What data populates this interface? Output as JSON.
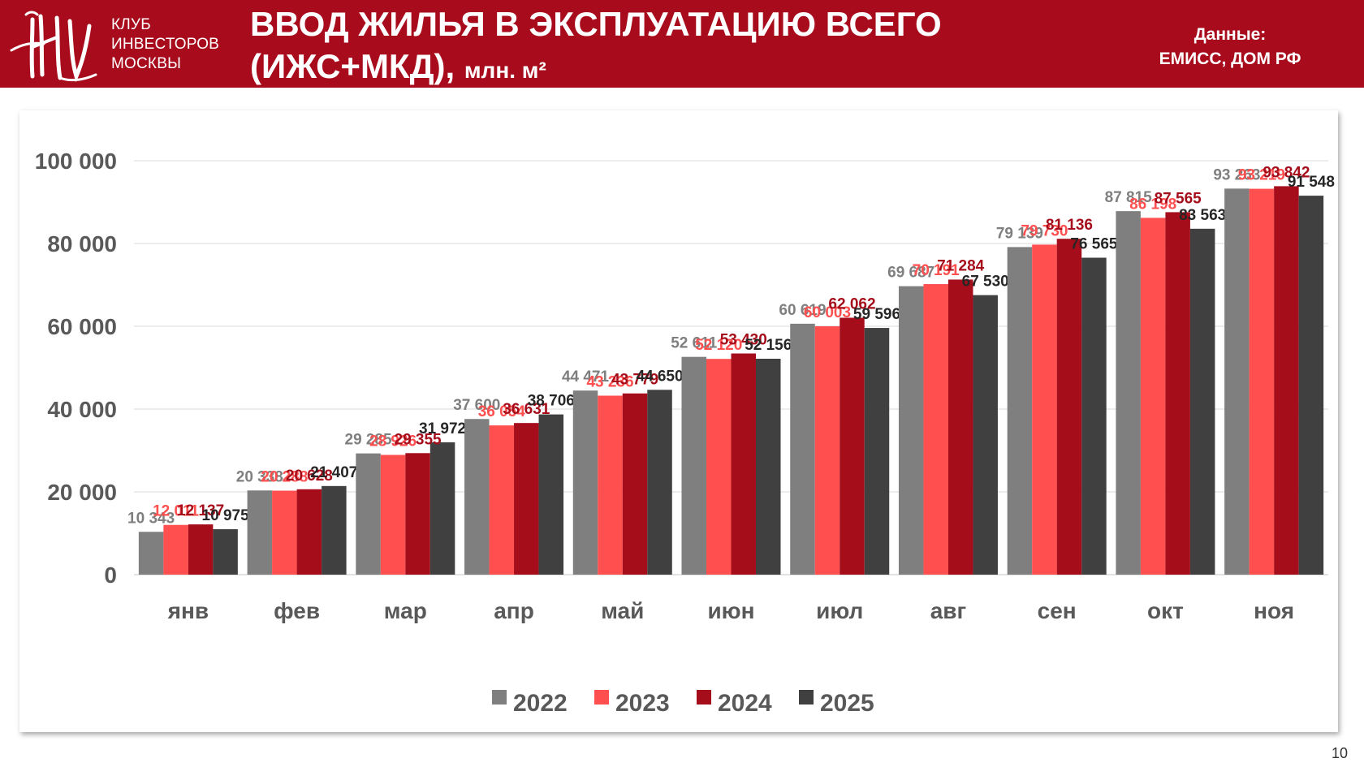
{
  "header": {
    "logo_lines": [
      "КЛУБ",
      "ИНВЕСТОРОВ",
      "МОСКВЫ"
    ],
    "title_line1": "ВВОД ЖИЛЬЯ В ЭКСПЛУАТАЦИЮ ВСЕГО",
    "title_line2": "(ИЖС+МКД),",
    "title_unit": "млн. м²",
    "source_label": "Данные:",
    "source_value": "ЕМИСС, ДОМ РФ"
  },
  "page_number": "10",
  "colors": {
    "header_bg": "#a80c1c",
    "s2022": "#7f7f7f",
    "s2023": "#ff4f4f",
    "s2024": "#a50d1b",
    "s2025": "#404040",
    "label2022": "#7f7f7f",
    "label2023": "#ff4f4f",
    "label2024": "#a50d1b",
    "label2025": "#262626",
    "axis_text": "#595959",
    "grid": "#d9d9d9"
  },
  "chart_data": {
    "type": "bar",
    "title": "ВВОД ЖИЛЬЯ В ЭКСПЛУАТАЦИЮ ВСЕГО (ИЖС+МКД), млн. м²",
    "xlabel": "",
    "ylabel": "",
    "ylim": [
      0,
      100000
    ],
    "y_ticks": [
      0,
      20000,
      40000,
      60000,
      80000,
      100000
    ],
    "y_tick_labels": [
      "0",
      "20 000",
      "40 000",
      "60 000",
      "80 000",
      "100 000"
    ],
    "grid": true,
    "legend_position": "bottom",
    "categories": [
      "янв",
      "фев",
      "мар",
      "апр",
      "май",
      "июн",
      "июл",
      "авг",
      "сен",
      "окт",
      "ноя"
    ],
    "series": [
      {
        "name": "2022",
        "values": [
          10343,
          20338,
          29285,
          37600,
          44471,
          52611,
          60619,
          69687,
          79139,
          87815,
          93263
        ],
        "labels": [
          "10 343",
          "20 338",
          "29 285",
          "37 600",
          "44 471",
          "52 611",
          "60 619",
          "69 687",
          "79 139",
          "87 815",
          "93 263"
        ]
      },
      {
        "name": "2023",
        "values": [
          12011,
          20288,
          28926,
          36054,
          43236,
          52120,
          60003,
          70191,
          79730,
          86198,
          93219
        ],
        "labels": [
          "12 011",
          "20 288",
          "28 926",
          "36 054",
          "43 236",
          "52 120",
          "60 003",
          "70 191",
          "79 730",
          "86 198",
          "93 219"
        ]
      },
      {
        "name": "2024",
        "values": [
          12137,
          20628,
          29355,
          36631,
          43779,
          53430,
          62062,
          71284,
          81136,
          87565,
          93842
        ],
        "labels": [
          "12 137",
          "20 628",
          "29 355",
          "36 631",
          "43 779",
          "53 430",
          "62 062",
          "71 284",
          "81 136",
          "87 565",
          "93 842"
        ]
      },
      {
        "name": "2025",
        "values": [
          10975,
          21407,
          31972,
          38706,
          44650,
          52156,
          59596,
          67530,
          76565,
          83563,
          91548
        ],
        "labels": [
          "10 975",
          "21 407",
          "31 972",
          "38 706",
          "44 650",
          "52 156",
          "59 596",
          "67 530",
          "76 565",
          "83 563",
          "91 548"
        ]
      }
    ]
  }
}
